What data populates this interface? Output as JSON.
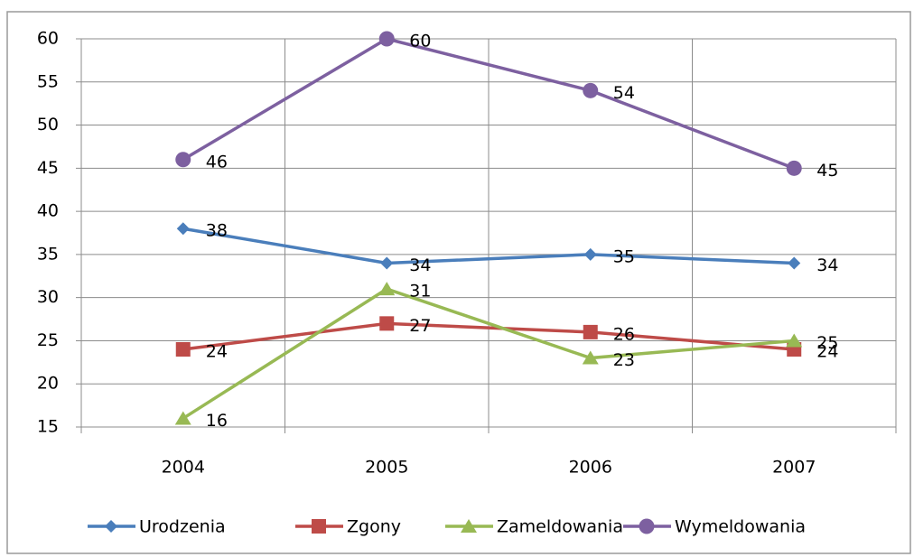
{
  "chart_data": {
    "type": "line",
    "categories": [
      "2004",
      "2005",
      "2006",
      "2007"
    ],
    "series": [
      {
        "name": "Urodzenia",
        "color": "#4a7ebb",
        "marker": "diamond",
        "values": [
          38,
          34,
          35,
          34
        ]
      },
      {
        "name": "Zgony",
        "color": "#be4b48",
        "marker": "square",
        "values": [
          24,
          27,
          26,
          24
        ]
      },
      {
        "name": "Zameldowania",
        "color": "#98b954",
        "marker": "triangle",
        "values": [
          16,
          31,
          23,
          25
        ]
      },
      {
        "name": "Wymeldowania",
        "color": "#7d60a0",
        "marker": "circle",
        "values": [
          46,
          60,
          54,
          45
        ]
      }
    ],
    "ylim": [
      15,
      60
    ],
    "yticks": [
      15,
      20,
      25,
      30,
      35,
      40,
      45,
      50,
      55,
      60
    ],
    "grid": true,
    "legend": "bottom",
    "data_labels": true
  }
}
